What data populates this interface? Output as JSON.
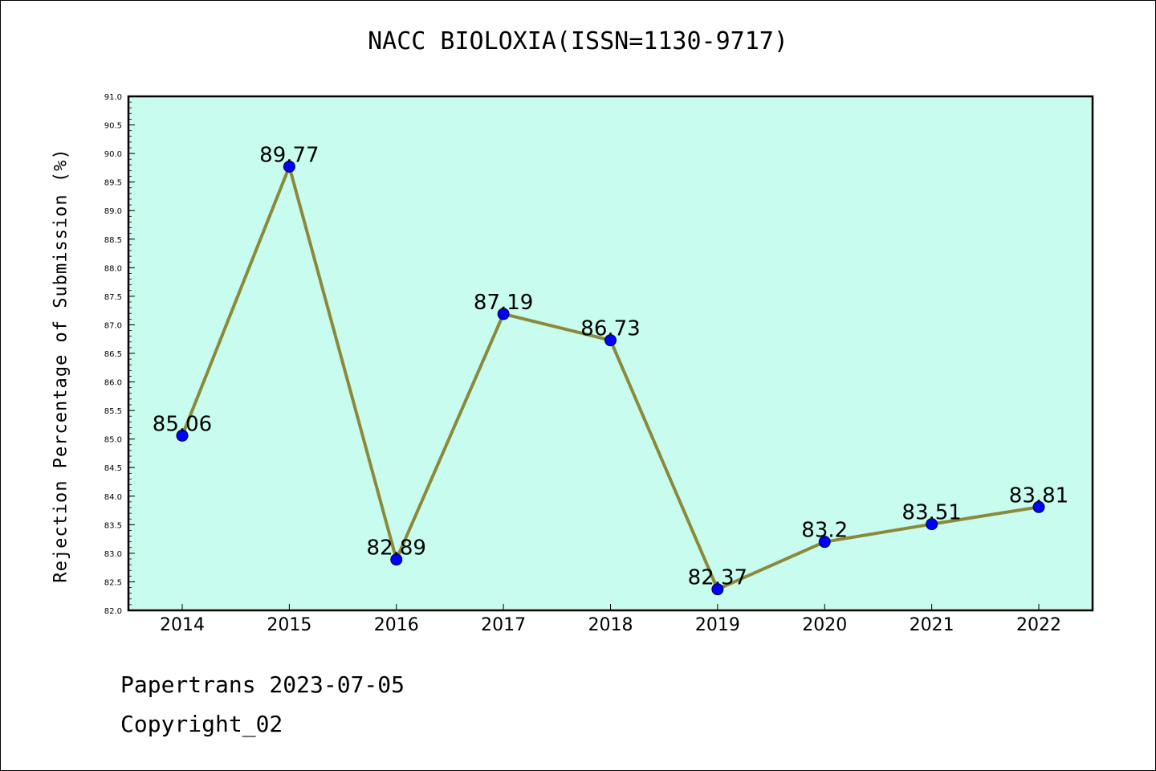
{
  "chart_data": {
    "type": "line",
    "title": "NACC BIOLOXIA(ISSN=1130-9717)",
    "xlabel": "",
    "ylabel": "Rejection Percentage of Submission (%)",
    "categories": [
      "2014",
      "2015",
      "2016",
      "2017",
      "2018",
      "2019",
      "2020",
      "2021",
      "2022"
    ],
    "series": [
      {
        "values": [
          85.06,
          89.77,
          82.89,
          87.19,
          86.73,
          82.37,
          83.2,
          83.51,
          83.81
        ]
      }
    ],
    "data_labels": [
      "85.06",
      "89.77",
      "82.89",
      "87.19",
      "86.73",
      "82.37",
      "83.2",
      "83.51",
      "83.81"
    ],
    "ylim": [
      82.0,
      91.0
    ],
    "y_ticks": [
      "82.0",
      "82.5",
      "83.0",
      "83.5",
      "84.0",
      "84.5",
      "85.0",
      "85.5",
      "86.0",
      "86.5",
      "87.0",
      "87.5",
      "88.0",
      "88.5",
      "89.0",
      "89.5",
      "90.0",
      "90.5",
      "91.0"
    ],
    "grid": false,
    "colors": {
      "plot_background": "#c8fcee",
      "line": "#8b8a3b",
      "marker": "#0000ff"
    }
  },
  "footer": {
    "line1": "Papertrans 2023-07-05",
    "line2": "Copyright_02"
  }
}
